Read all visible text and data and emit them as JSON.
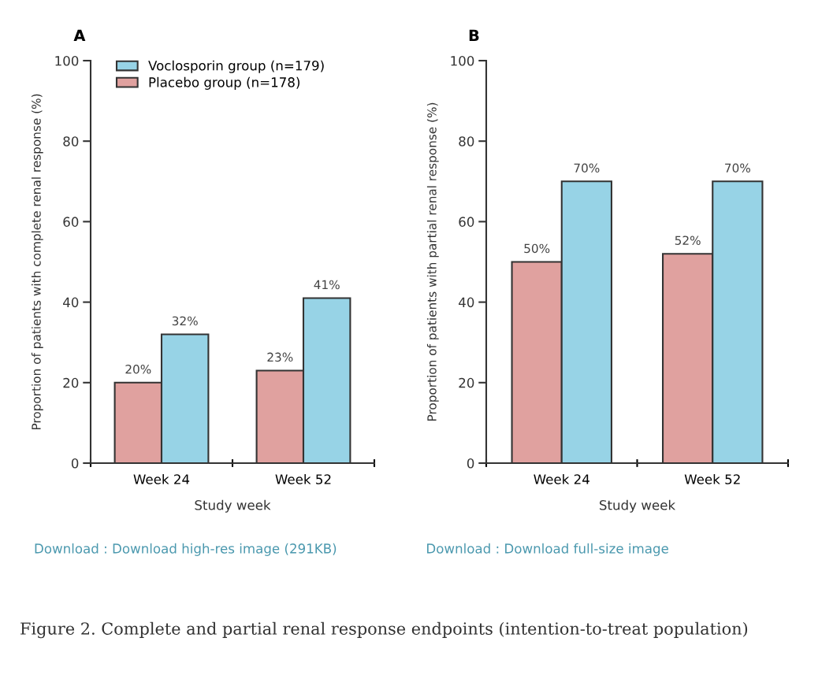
{
  "chart_data": [
    {
      "type": "bar",
      "title": "A",
      "xlabel": "Study week",
      "ylabel": "Proportion of patients with complete renal response (%)",
      "categories": [
        "Week 24",
        "Week 52"
      ],
      "series": [
        {
          "name": "Placebo group (n=178)",
          "color": "#e0a19f",
          "values": [
            20,
            23
          ],
          "value_labels": [
            "20%",
            "23%"
          ]
        },
        {
          "name": "Voclosporin group (n=179)",
          "color": "#97d3e6",
          "values": [
            32,
            41
          ],
          "value_labels": [
            "32%",
            "41%"
          ]
        }
      ],
      "ylim": [
        0,
        100
      ],
      "yticks": [
        0,
        20,
        40,
        60,
        80,
        100
      ],
      "legend": "top left",
      "annotations": [
        "Download : Download high-res image (291KB)",
        "Figure 2. Complete and partial renal response endpoints (intention-to-treat population)"
      ]
    },
    {
      "type": "bar",
      "title": "B",
      "xlabel": "Study week",
      "ylabel": "Proportion of patients with partial renal response (%)",
      "categories": [
        "Week 24",
        "Week 52"
      ],
      "series": [
        {
          "color": "#e0a19f",
          "values": [
            50,
            52
          ],
          "value_labels": [
            "50%",
            "52%"
          ]
        },
        {
          "color": "#97d3e6",
          "values": [
            70,
            70
          ],
          "value_labels": [
            "70%",
            "70%"
          ]
        }
      ],
      "ylim": [
        0,
        100
      ],
      "yticks": [
        0,
        20,
        40,
        60,
        80,
        100
      ],
      "annotations": [
        "Download : Download full-size image"
      ]
    }
  ]
}
